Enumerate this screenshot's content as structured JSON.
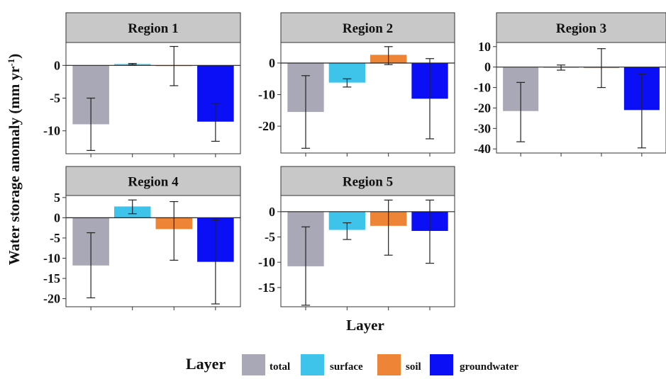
{
  "chart_data": {
    "type": "bar",
    "categories": [
      "total",
      "surface",
      "soil",
      "groundwater"
    ],
    "colors": {
      "total": "#a9a8b6",
      "surface": "#3ec4ea",
      "soil": "#ee8436",
      "groundwater": "#0a0ff6"
    },
    "strip_color": "#c8c8c8",
    "ylabel": "Water storage anomaly (mm yr",
    "ylabel_sup": "-1",
    "ylabel_close": ")",
    "xlabel": "Layer",
    "legend": {
      "title": "Layer",
      "position": "bottom",
      "labels": [
        "total",
        "surface",
        "soil",
        "groundwater"
      ]
    },
    "grid": false,
    "panels": [
      {
        "title": "Region 1",
        "ylim": [
          -13.5,
          3.5
        ],
        "yticks": [
          0,
          -5,
          -10
        ],
        "ytick_labels": [
          "0",
          "-5",
          "-10"
        ],
        "values": [
          -9.0,
          0.2,
          0.0,
          -8.6
        ],
        "err_low": [
          -13.0,
          0.1,
          -3.1,
          -11.6
        ],
        "err_high": [
          -5.0,
          0.3,
          2.9,
          -5.8
        ]
      },
      {
        "title": "Region 2",
        "ylim": [
          -28.5,
          6.5
        ],
        "yticks": [
          0,
          -10,
          -20
        ],
        "ytick_labels": [
          "0",
          "-10",
          "-20"
        ],
        "values": [
          -15.5,
          -6.2,
          2.6,
          -11.3
        ],
        "err_low": [
          -27.0,
          -7.6,
          -0.5,
          -24.0
        ],
        "err_high": [
          -4.0,
          -5.0,
          5.2,
          1.4
        ]
      },
      {
        "title": "Region 3",
        "ylim": [
          -42,
          12
        ],
        "yticks": [
          10,
          0,
          -10,
          -20,
          -30,
          -40
        ],
        "ytick_labels": [
          "10",
          "0",
          "-10",
          "-20",
          "-30",
          "-40"
        ],
        "values": [
          -21.5,
          -0.2,
          -0.5,
          -21.0
        ],
        "err_low": [
          -36.5,
          -1.5,
          -10.0,
          -39.5
        ],
        "err_high": [
          -7.5,
          1.0,
          9.0,
          -3.5
        ]
      },
      {
        "title": "Region 4",
        "ylim": [
          -22.0,
          5.5
        ],
        "yticks": [
          5,
          0,
          -5,
          -10,
          -15,
          -20
        ],
        "ytick_labels": [
          "5",
          "0",
          "-5",
          "-10",
          "-15",
          "-20"
        ],
        "values": [
          -11.8,
          2.8,
          -2.8,
          -10.9
        ],
        "err_low": [
          -19.8,
          1.0,
          -10.5,
          -21.3
        ],
        "err_high": [
          -3.7,
          4.4,
          4.0,
          -0.5
        ]
      },
      {
        "title": "Region 5",
        "ylim": [
          -18.8,
          3.2
        ],
        "yticks": [
          0,
          -5,
          -10,
          -15
        ],
        "ytick_labels": [
          "0",
          "-5",
          "-10",
          "-15"
        ],
        "values": [
          -10.8,
          -3.6,
          -2.8,
          -3.8
        ],
        "err_low": [
          -18.5,
          -5.5,
          -8.6,
          -10.2
        ],
        "err_high": [
          -3.0,
          -2.2,
          2.3,
          2.3
        ]
      }
    ]
  }
}
